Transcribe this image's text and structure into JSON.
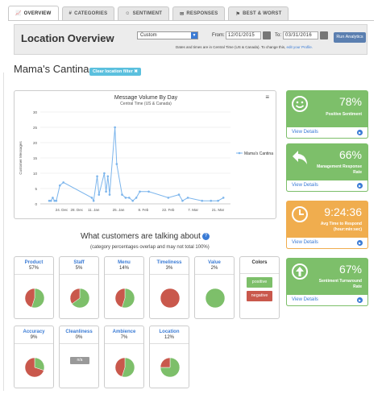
{
  "tabs": [
    {
      "label": "OVERVIEW",
      "icon": "line-chart-icon"
    },
    {
      "label": "CATEGORIES",
      "icon": "hash-icon"
    },
    {
      "label": "SENTIMENT",
      "icon": "smile-icon"
    },
    {
      "label": "RESPONSES",
      "icon": "chat-icon"
    },
    {
      "label": "BEST & WORST",
      "icon": "flag-icon"
    }
  ],
  "header": {
    "title": "Location Overview",
    "range_select": "Custom",
    "from_label": "From:",
    "from_date": "12/01/2015",
    "to_label": "To:",
    "to_date": "03/31/2016",
    "run_button": "Run Analytics",
    "note": "Dates and times are in Central Time (US & Canada). To change this,",
    "note_link": "edit your Profile."
  },
  "location": {
    "name": "Mama's Cantina",
    "filter_button": "Clear location filter ✖"
  },
  "chart_data": {
    "type": "line",
    "title": "Message Volume By Day",
    "subtitle": "Central Time (US & Canada)",
    "xlabel": "",
    "ylabel": "Customer Messages",
    "ylim": [
      0,
      30
    ],
    "yticks": [
      0,
      5,
      10,
      15,
      20,
      25,
      30
    ],
    "xtick_labels": [
      "24. Dec",
      "28. Dec",
      "11. Jan",
      "25. Jan",
      "8. Feb",
      "22. Feb",
      "7. Mar",
      "21. Mar"
    ],
    "grid": true,
    "legend_position": "right",
    "series": [
      {
        "name": "Mama's Cantina",
        "color": "#7cb5ec",
        "x": [
          "2015-12-17",
          "2015-12-18",
          "2015-12-19",
          "2015-12-20",
          "2015-12-21",
          "2015-12-23",
          "2015-12-25",
          "2016-01-10",
          "2016-01-11",
          "2016-01-13",
          "2016-01-14",
          "2016-01-17",
          "2016-01-18",
          "2016-01-19",
          "2016-01-20",
          "2016-01-23",
          "2016-01-24",
          "2016-01-27",
          "2016-01-29",
          "2016-01-31",
          "2016-02-02",
          "2016-02-04",
          "2016-02-06",
          "2016-02-11",
          "2016-02-22",
          "2016-02-28",
          "2016-03-01",
          "2016-03-04",
          "2016-03-12",
          "2016-03-17",
          "2016-03-21",
          "2016-03-24"
        ],
        "values": [
          1,
          1,
          2,
          1,
          1,
          6,
          7,
          2,
          1,
          9,
          3,
          10,
          4,
          9,
          3,
          25,
          13,
          3,
          2,
          2,
          1,
          2,
          4,
          4,
          2,
          3,
          1,
          2,
          1,
          1,
          1,
          2
        ]
      }
    ]
  },
  "topics": {
    "title": "What customers are talking about",
    "subtitle": "(category percentages overlap and may not total 100%)",
    "items": [
      {
        "name": "Product",
        "pct": "57%",
        "positive": 0.55
      },
      {
        "name": "Staff",
        "pct": "5%",
        "positive": 0.65
      },
      {
        "name": "Menu",
        "pct": "14%",
        "positive": 0.55
      },
      {
        "name": "Timeliness",
        "pct": "3%",
        "positive": 0.0
      },
      {
        "name": "Value",
        "pct": "2%",
        "positive": 1.0
      },
      {
        "name": "Accuracy",
        "pct": "9%",
        "positive": 0.3
      },
      {
        "name": "Cleanliness",
        "pct": "0%",
        "positive": null,
        "na_label": "n/a"
      },
      {
        "name": "Ambience",
        "pct": "7%",
        "positive": 0.55
      },
      {
        "name": "Location",
        "pct": "12%",
        "positive": 0.75
      }
    ],
    "colors_legend": {
      "title": "Colors",
      "positive": "positive",
      "negative": "negative"
    }
  },
  "colors": {
    "positive": "#7dbf6a",
    "negative": "#c9584c",
    "green_card": "#7dbf6a",
    "orange_card": "#f0ad4e",
    "accent": "#3a7bd5"
  },
  "kpis": [
    {
      "value": "78%",
      "label": "Positive Sentiment",
      "icon": "smile-icon",
      "link": "View Details",
      "color": "#7dbf6a"
    },
    {
      "value": "66%",
      "label": "Management Response Rate",
      "icon": "reply-arrow-icon",
      "link": "View Details",
      "color": "#7dbf6a"
    },
    {
      "value": "9:24:36",
      "label": "Avg Time to Respond (hour:min:sec)",
      "icon": "clock-icon",
      "link": "View Details",
      "color": "#f0ad4e"
    },
    {
      "value": "67%",
      "label": "Sentiment Turnaround Rate",
      "icon": "up-arrow-circle-icon",
      "link": "View Details",
      "color": "#7dbf6a"
    }
  ]
}
